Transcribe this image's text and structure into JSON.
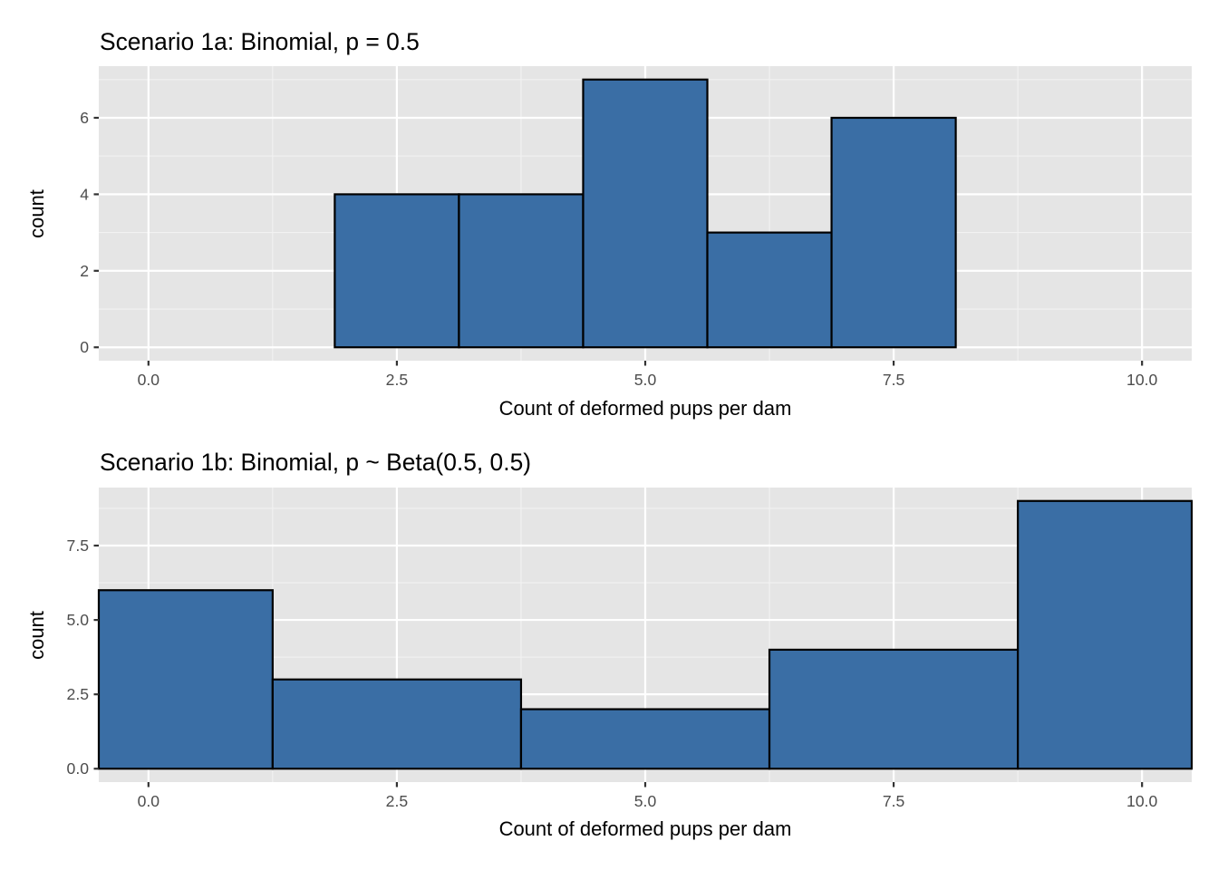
{
  "chart_data": [
    {
      "type": "bar",
      "title": "Scenario 1a: Binomial, p = 0.5",
      "xlabel": "Count of deformed pups per dam",
      "ylabel": "count",
      "xlim": [
        -0.5,
        10.5
      ],
      "ylim": [
        -0.35,
        7.35
      ],
      "x_ticks": [
        0,
        2.5,
        5,
        7.5,
        10
      ],
      "x_tick_labels": [
        "0.0",
        "2.5",
        "5.0",
        "7.5",
        "10.0"
      ],
      "y_ticks": [
        0,
        2,
        4,
        6
      ],
      "y_tick_labels": [
        "0",
        "2",
        "4",
        "6"
      ],
      "bins": [
        {
          "x_start": 1.875,
          "x_end": 3.125,
          "count": 4
        },
        {
          "x_start": 3.125,
          "x_end": 4.375,
          "count": 4
        },
        {
          "x_start": 4.375,
          "x_end": 5.625,
          "count": 7
        },
        {
          "x_start": 5.625,
          "x_end": 6.875,
          "count": 3
        },
        {
          "x_start": 6.875,
          "x_end": 8.125,
          "count": 6
        }
      ],
      "grid": true,
      "colors": {
        "fill": "#3a6ea5",
        "outline": "#000000",
        "panel": "#e5e5e5"
      }
    },
    {
      "type": "bar",
      "title": "Scenario 1b: Binomial, p ~ Beta(0.5, 0.5)",
      "xlabel": "Count of deformed pups per dam",
      "ylabel": "count",
      "xlim": [
        -0.5,
        10.5
      ],
      "ylim": [
        -0.45,
        9.45
      ],
      "x_ticks": [
        0,
        2.5,
        5,
        7.5,
        10
      ],
      "x_tick_labels": [
        "0.0",
        "2.5",
        "5.0",
        "7.5",
        "10.0"
      ],
      "y_ticks": [
        0,
        2.5,
        5,
        7.5
      ],
      "y_tick_labels": [
        "0.0",
        "2.5",
        "5.0",
        "7.5"
      ],
      "bins": [
        {
          "x_start": -1.25,
          "x_end": 1.25,
          "count": 6
        },
        {
          "x_start": 1.25,
          "x_end": 3.75,
          "count": 3
        },
        {
          "x_start": 3.75,
          "x_end": 6.25,
          "count": 2
        },
        {
          "x_start": 6.25,
          "x_end": 8.75,
          "count": 4
        },
        {
          "x_start": 8.75,
          "x_end": 11.25,
          "count": 9
        }
      ],
      "grid": true,
      "colors": {
        "fill": "#3a6ea5",
        "outline": "#000000",
        "panel": "#e5e5e5"
      }
    }
  ]
}
